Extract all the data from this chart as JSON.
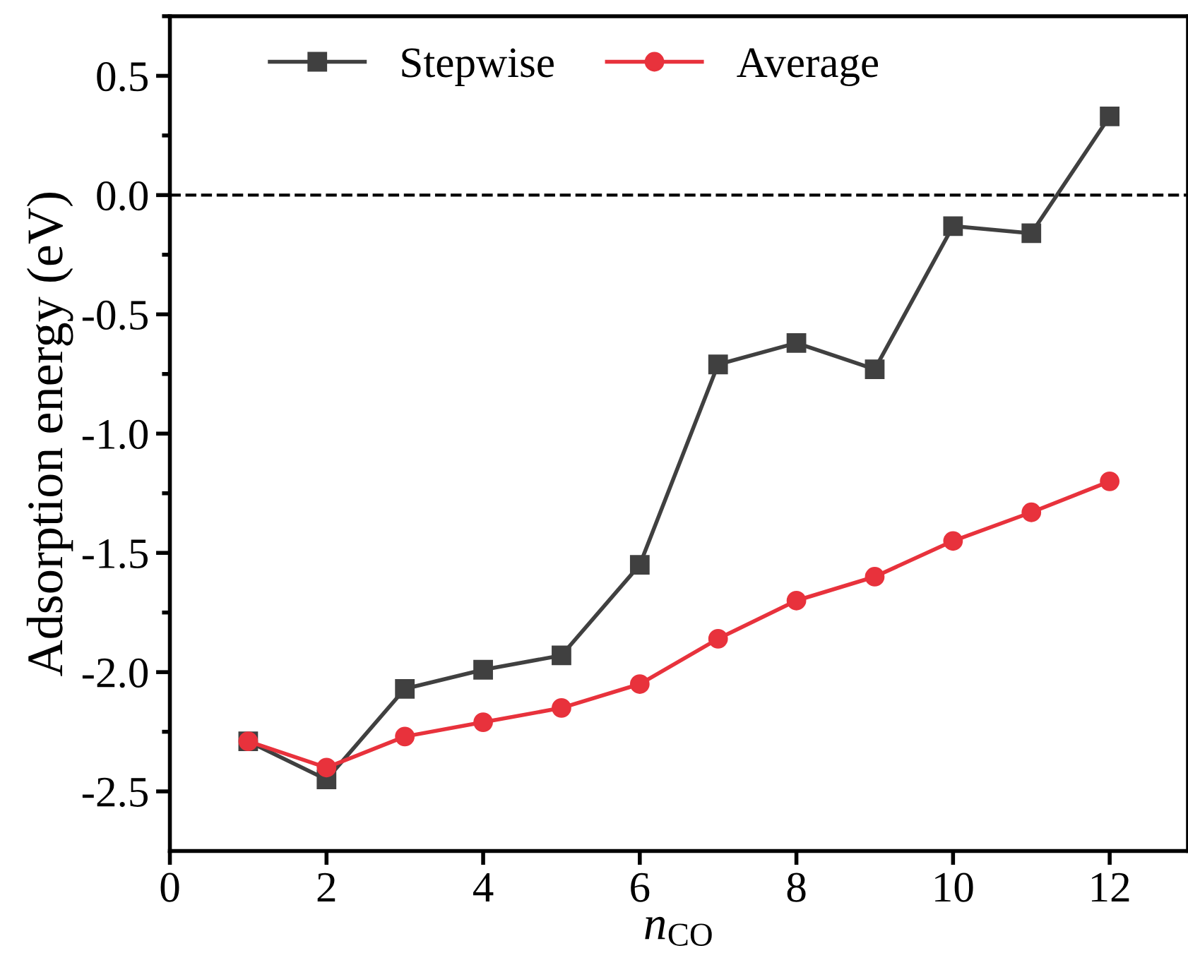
{
  "chart_data": {
    "type": "line",
    "xlabel": "n$_{CO}$",
    "ylabel": "Adsorption energy (eV)",
    "x": [
      1,
      2,
      3,
      4,
      5,
      6,
      7,
      8,
      9,
      10,
      11,
      12
    ],
    "series": [
      {
        "name": "Stepwise",
        "color": "#404040",
        "marker": "square",
        "values": [
          -2.29,
          -2.45,
          -2.07,
          -1.99,
          -1.93,
          -1.55,
          -0.71,
          -0.62,
          -0.73,
          -0.13,
          -0.16,
          0.33
        ]
      },
      {
        "name": "Average",
        "color": "#e8323c",
        "marker": "circle",
        "values": [
          -2.29,
          -2.4,
          -2.27,
          -2.21,
          -2.15,
          -2.05,
          -1.86,
          -1.7,
          -1.6,
          -1.45,
          -1.33,
          -1.2
        ]
      }
    ],
    "xlim": [
      0,
      13
    ],
    "xticks": [
      0,
      2,
      4,
      6,
      8,
      10,
      12
    ],
    "ylim": [
      -2.75,
      0.75
    ],
    "yticks": [
      -2.5,
      {
        "value": -2,
        "label": "-2.0"
      },
      -1.5,
      {
        "value": -1,
        "label": "-1.0"
      },
      -0.5,
      {
        "value": 0,
        "label": "0.0"
      },
      0.5
    ],
    "ref_lines": [
      {
        "axis": "y",
        "value": 0,
        "color": "#000000",
        "line_style": "dashed"
      }
    ],
    "grid": false,
    "legend": "top left",
    "line_style": "solid"
  }
}
